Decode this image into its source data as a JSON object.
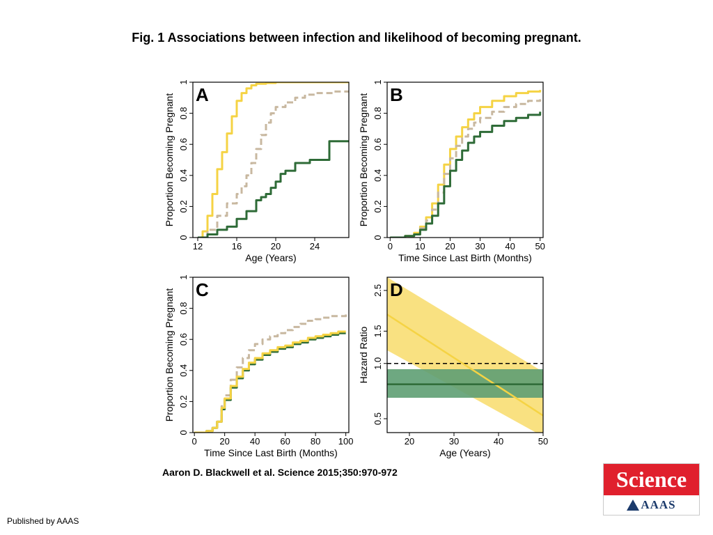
{
  "title": "Fig. 1 Associations between infection and likelihood of becoming pregnant.",
  "citation": "Aaron D. Blackwell et al. Science 2015;350:970-972",
  "publisher": "Published by AAAS",
  "logo": {
    "name": "Science",
    "org": "AAAS"
  },
  "colors": {
    "yellow": "#f5d344",
    "tan": "#c8b8a0",
    "green": "#2e6b37",
    "ci_yellow": "#f8dc6b",
    "ci_green": "#5e9f73"
  },
  "chart_data": [
    {
      "panel": "A",
      "type": "line",
      "xlabel": "Age (Years)",
      "ylabel": "Proportion Becoming Pregnant",
      "xlim": [
        11.5,
        27.5
      ],
      "ylim": [
        0,
        1
      ],
      "xticks": [
        12,
        16,
        20,
        24
      ],
      "yticks": [
        0.0,
        0.2,
        0.4,
        0.6,
        0.8,
        1.0
      ],
      "series": [
        {
          "color": "yellow",
          "style": "solid",
          "x": [
            12,
            12.5,
            13,
            13.5,
            14,
            14.5,
            15,
            15.5,
            16,
            16.5,
            17,
            17.5,
            18,
            19,
            20,
            22,
            24,
            26,
            27.5
          ],
          "y": [
            0.0,
            0.04,
            0.14,
            0.28,
            0.44,
            0.55,
            0.67,
            0.78,
            0.88,
            0.93,
            0.96,
            0.98,
            0.99,
            0.995,
            1.0,
            1.0,
            1.0,
            1.0,
            1.0
          ]
        },
        {
          "color": "tan",
          "style": "dashed",
          "x": [
            12,
            13,
            14,
            15,
            16,
            16.5,
            17,
            17.5,
            18,
            18.5,
            19,
            19.5,
            20,
            21,
            22,
            23,
            24,
            25,
            26,
            27.5
          ],
          "y": [
            0.0,
            0.05,
            0.14,
            0.22,
            0.28,
            0.33,
            0.4,
            0.48,
            0.57,
            0.66,
            0.74,
            0.8,
            0.84,
            0.87,
            0.9,
            0.92,
            0.93,
            0.93,
            0.94,
            0.94
          ]
        },
        {
          "color": "green",
          "style": "solid",
          "x": [
            12,
            13,
            14,
            15,
            16,
            17,
            18,
            18.5,
            19,
            19.5,
            20,
            20.5,
            21,
            22,
            22.5,
            23,
            23.5,
            24,
            25,
            25.5,
            26,
            27.5
          ],
          "y": [
            0.0,
            0.02,
            0.05,
            0.07,
            0.12,
            0.17,
            0.24,
            0.26,
            0.28,
            0.32,
            0.36,
            0.41,
            0.43,
            0.48,
            0.48,
            0.48,
            0.5,
            0.5,
            0.5,
            0.62,
            0.62,
            0.62
          ]
        }
      ]
    },
    {
      "panel": "B",
      "type": "line",
      "xlabel": "Time Since Last Birth (Months)",
      "ylabel": "Proportion Becoming Pregnant",
      "xlim": [
        -1,
        51
      ],
      "ylim": [
        0,
        1
      ],
      "xticks": [
        0,
        10,
        20,
        30,
        40,
        50
      ],
      "yticks": [
        0.0,
        0.2,
        0.4,
        0.6,
        0.8,
        1.0
      ],
      "series": [
        {
          "color": "yellow",
          "style": "solid",
          "x": [
            0,
            5,
            8,
            10,
            12,
            14,
            16,
            18,
            20,
            22,
            24,
            26,
            28,
            30,
            34,
            38,
            42,
            46,
            50
          ],
          "y": [
            0.0,
            0.01,
            0.03,
            0.07,
            0.13,
            0.22,
            0.34,
            0.47,
            0.57,
            0.65,
            0.71,
            0.76,
            0.8,
            0.84,
            0.88,
            0.91,
            0.93,
            0.94,
            0.95
          ]
        },
        {
          "color": "tan",
          "style": "dashed",
          "x": [
            0,
            5,
            8,
            10,
            12,
            14,
            16,
            18,
            20,
            22,
            24,
            26,
            28,
            30,
            34,
            38,
            42,
            46,
            50
          ],
          "y": [
            0.0,
            0.01,
            0.02,
            0.06,
            0.11,
            0.18,
            0.29,
            0.41,
            0.51,
            0.59,
            0.65,
            0.7,
            0.74,
            0.77,
            0.81,
            0.84,
            0.86,
            0.88,
            0.89
          ]
        },
        {
          "color": "green",
          "style": "solid",
          "x": [
            0,
            5,
            8,
            10,
            12,
            14,
            16,
            18,
            20,
            22,
            24,
            26,
            28,
            30,
            34,
            38,
            42,
            46,
            50
          ],
          "y": [
            0.0,
            0.01,
            0.02,
            0.05,
            0.09,
            0.14,
            0.22,
            0.33,
            0.43,
            0.5,
            0.56,
            0.61,
            0.65,
            0.68,
            0.72,
            0.75,
            0.77,
            0.79,
            0.81
          ]
        }
      ]
    },
    {
      "panel": "C",
      "type": "line",
      "xlabel": "Time Since Last Birth (Months)",
      "ylabel": "Proportion Becoming Pregnant",
      "xlim": [
        -1,
        102
      ],
      "ylim": [
        0,
        1
      ],
      "xticks": [
        0,
        20,
        40,
        60,
        80,
        100
      ],
      "yticks": [
        0.0,
        0.2,
        0.4,
        0.6,
        0.8,
        1.0
      ],
      "series": [
        {
          "color": "tan",
          "style": "dashed",
          "x": [
            0,
            5,
            8,
            12,
            15,
            18,
            20,
            24,
            28,
            32,
            36,
            40,
            45,
            50,
            55,
            60,
            65,
            70,
            75,
            80,
            85,
            90,
            95,
            100
          ],
          "y": [
            0.0,
            0.0,
            0.01,
            0.03,
            0.07,
            0.17,
            0.24,
            0.34,
            0.42,
            0.48,
            0.53,
            0.57,
            0.6,
            0.62,
            0.64,
            0.66,
            0.68,
            0.7,
            0.72,
            0.73,
            0.74,
            0.75,
            0.75,
            0.76
          ]
        },
        {
          "color": "green",
          "style": "solid",
          "x": [
            0,
            5,
            8,
            12,
            15,
            18,
            20,
            24,
            28,
            32,
            36,
            40,
            45,
            50,
            55,
            60,
            65,
            70,
            75,
            80,
            85,
            90,
            95,
            100
          ],
          "y": [
            0.0,
            0.0,
            0.01,
            0.03,
            0.07,
            0.15,
            0.21,
            0.29,
            0.35,
            0.4,
            0.44,
            0.47,
            0.5,
            0.52,
            0.54,
            0.55,
            0.57,
            0.58,
            0.6,
            0.61,
            0.62,
            0.63,
            0.64,
            0.64
          ]
        },
        {
          "color": "yellow",
          "style": "solid",
          "x": [
            0,
            5,
            8,
            12,
            15,
            18,
            20,
            24,
            28,
            32,
            36,
            40,
            45,
            50,
            55,
            60,
            65,
            70,
            75,
            80,
            85,
            90,
            95,
            100
          ],
          "y": [
            0.0,
            0.0,
            0.01,
            0.03,
            0.07,
            0.16,
            0.22,
            0.3,
            0.36,
            0.41,
            0.45,
            0.48,
            0.51,
            0.53,
            0.55,
            0.56,
            0.58,
            0.59,
            0.61,
            0.62,
            0.63,
            0.64,
            0.65,
            0.65
          ]
        }
      ]
    },
    {
      "panel": "D",
      "type": "line",
      "xlabel": "Age (Years)",
      "ylabel": "Hazard Ratio",
      "xlim": [
        15,
        50
      ],
      "ylim": [
        0.42,
        2.95
      ],
      "yscale": "log",
      "xticks": [
        20,
        30,
        40,
        50
      ],
      "yticks": [
        0.5,
        1.0,
        1.5,
        2.5
      ],
      "reference_line": 1.0,
      "bands": [
        {
          "color": "ci_yellow",
          "x": [
            15,
            50
          ],
          "lower": [
            1.18,
            0.4
          ],
          "upper": [
            2.95,
            0.9
          ]
        },
        {
          "color": "ci_green",
          "x": [
            15,
            50
          ],
          "lower": [
            0.65,
            0.65
          ],
          "upper": [
            0.93,
            0.93
          ]
        }
      ],
      "series": [
        {
          "color": "yellow",
          "style": "solid",
          "x": [
            15,
            50
          ],
          "y": [
            1.85,
            0.52
          ]
        },
        {
          "color": "green",
          "style": "solid",
          "x": [
            15,
            50
          ],
          "y": [
            0.77,
            0.77
          ]
        }
      ]
    }
  ]
}
